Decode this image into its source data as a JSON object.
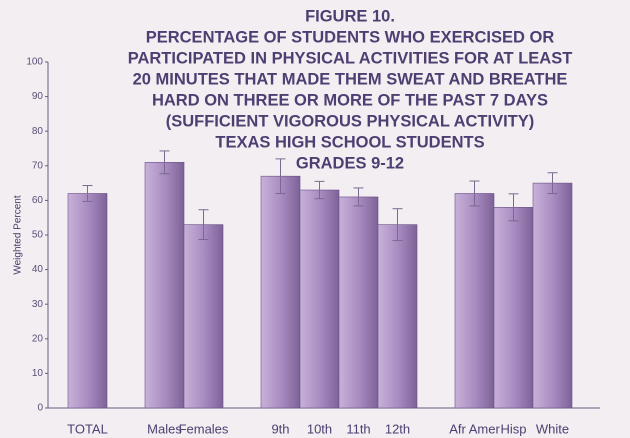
{
  "chart_data": {
    "type": "bar",
    "title": [
      "FIGURE 10.",
      "PERCENTAGE OF STUDENTS WHO EXERCISED OR",
      "PARTICIPATED IN PHYSICAL ACTIVITIES FOR AT LEAST",
      "20 MINUTES THAT MADE THEM SWEAT AND BREATHE",
      "HARD ON THREE OR MORE OF THE PAST 7 DAYS",
      "(SUFFICIENT VIGOROUS PHYSICAL ACTIVITY)",
      "TEXAS HIGH  SCHOOL STUDENTS",
      "GRADES 9-12"
    ],
    "y_label": "Weighted Percent",
    "categories": [
      "TOTAL",
      "Males",
      "Females",
      "9th",
      "10th",
      "11th",
      "12th",
      "Afr Amer",
      "Hisp",
      "White"
    ],
    "values": [
      62,
      71,
      53,
      67,
      63,
      61,
      53,
      62,
      58,
      65
    ],
    "errors": [
      2.3,
      3.3,
      4.3,
      5,
      2.5,
      2.6,
      4.6,
      3.6,
      3.9,
      3
    ],
    "color": "#a98cc2",
    "ylim": [
      0,
      100
    ],
    "yticks": [
      0,
      10,
      20,
      30,
      40,
      50,
      60,
      70,
      80,
      90,
      100
    ],
    "grid": false
  }
}
